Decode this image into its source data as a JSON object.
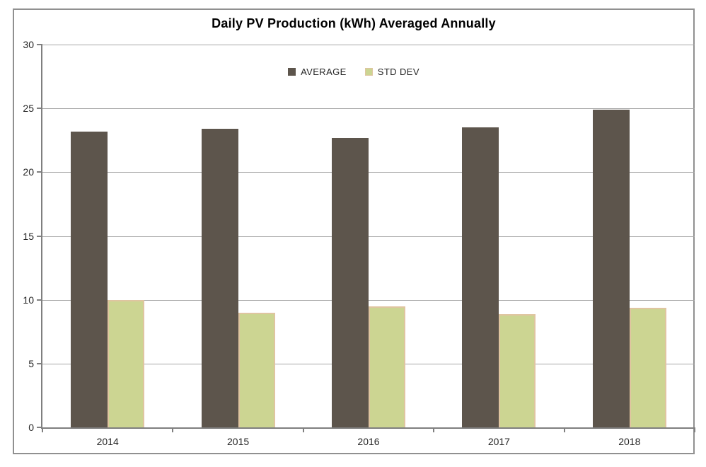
{
  "chart_data": {
    "type": "bar",
    "title": "Daily PV Production (kWh) Averaged Annually",
    "categories": [
      "2014",
      "2015",
      "2016",
      "2017",
      "2018"
    ],
    "series": [
      {
        "name": "AVERAGE",
        "color": "#5d554c",
        "values": [
          23.2,
          23.4,
          22.7,
          23.5,
          24.9
        ]
      },
      {
        "name": "STD DEV",
        "color": "#ccd592",
        "border_color": "#dfc5a0",
        "values": [
          10.0,
          9.0,
          9.5,
          8.9,
          9.4
        ]
      }
    ],
    "xlabel": "",
    "ylabel": "",
    "ylim": [
      0,
      30
    ],
    "yticks": [
      0,
      5,
      10,
      15,
      20,
      25,
      30
    ],
    "grid": true,
    "legend_position": "top-center",
    "colors": {
      "gridline": "#a6a6a6",
      "axis": "#7f7f7f",
      "frame_border": "#909090",
      "text": "#262626",
      "title": "#000000",
      "background": "#ffffff"
    }
  }
}
